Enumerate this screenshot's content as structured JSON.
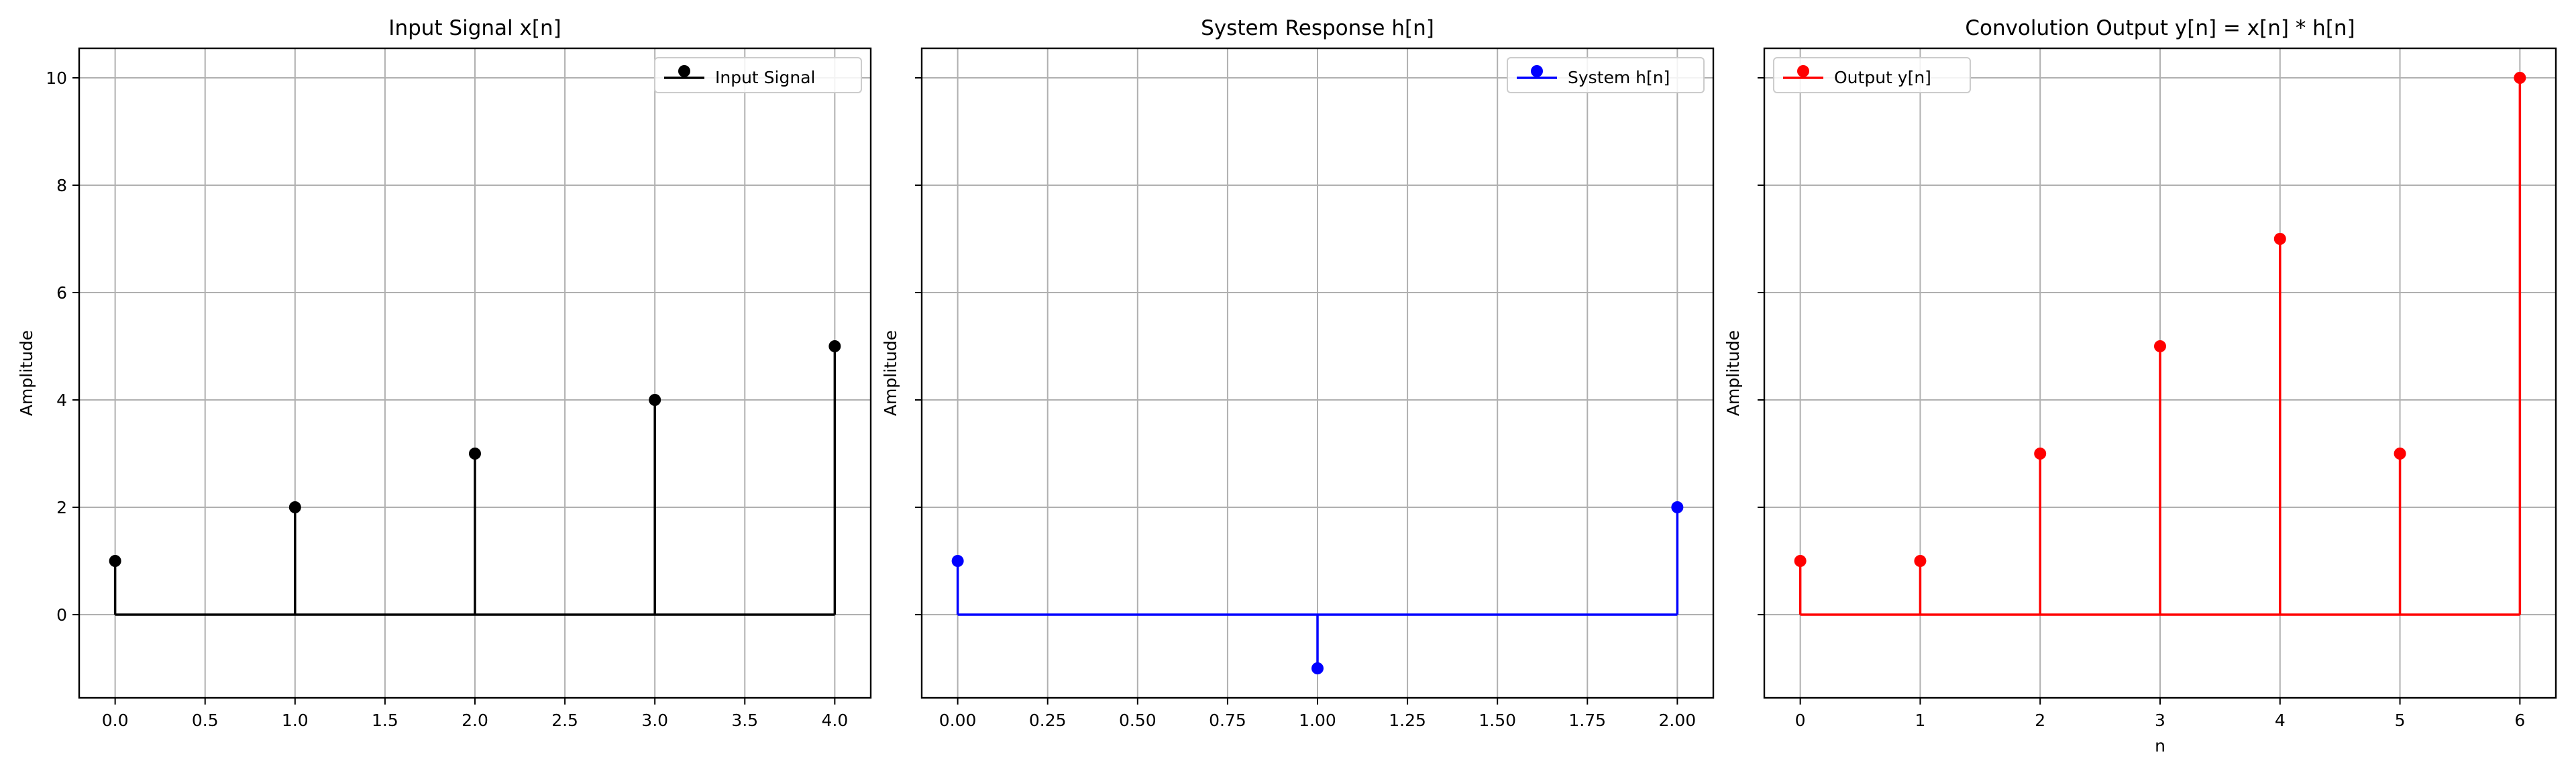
{
  "chart_data": [
    {
      "type": "stem",
      "title": "Input Signal x[n]",
      "xlabel": "",
      "ylabel": "Amplitude",
      "xlim": [
        -0.2,
        4.2
      ],
      "ylim": [
        -1.55,
        10.55
      ],
      "xticks": [
        0.0,
        0.5,
        1.0,
        1.5,
        2.0,
        2.5,
        3.0,
        3.5,
        4.0
      ],
      "xtick_labels": [
        "0.0",
        "0.5",
        "1.0",
        "1.5",
        "2.0",
        "2.5",
        "3.0",
        "3.5",
        "4.0"
      ],
      "yticks": [
        0,
        2,
        4,
        6,
        8,
        10
      ],
      "ytick_labels": [
        "0",
        "2",
        "4",
        "6",
        "8",
        "10"
      ],
      "show_ytick_labels": true,
      "grid": true,
      "legend_position": "upper right",
      "series": [
        {
          "name": "Input Signal",
          "color": "#000000",
          "x": [
            0,
            1,
            2,
            3,
            4
          ],
          "y": [
            1,
            2,
            3,
            4,
            5
          ]
        }
      ]
    },
    {
      "type": "stem",
      "title": "System Response h[n]",
      "xlabel": "",
      "ylabel": "Amplitude",
      "xlim": [
        -0.1,
        2.1
      ],
      "ylim": [
        -1.55,
        10.55
      ],
      "xticks": [
        0.0,
        0.25,
        0.5,
        0.75,
        1.0,
        1.25,
        1.5,
        1.75,
        2.0
      ],
      "xtick_labels": [
        "0.00",
        "0.25",
        "0.50",
        "0.75",
        "1.00",
        "1.25",
        "1.50",
        "1.75",
        "2.00"
      ],
      "yticks": [
        0,
        2,
        4,
        6,
        8,
        10
      ],
      "ytick_labels": [
        "0",
        "2",
        "4",
        "6",
        "8",
        "10"
      ],
      "show_ytick_labels": false,
      "grid": true,
      "legend_position": "upper right",
      "series": [
        {
          "name": "System h[n]",
          "color": "#0000ff",
          "x": [
            0,
            1,
            2
          ],
          "y": [
            1,
            -1,
            2
          ]
        }
      ]
    },
    {
      "type": "stem",
      "title": "Convolution Output y[n] = x[n] * h[n]",
      "xlabel": "n",
      "ylabel": "Amplitude",
      "xlim": [
        -0.3,
        6.3
      ],
      "ylim": [
        -1.55,
        10.55
      ],
      "xticks": [
        0,
        1,
        2,
        3,
        4,
        5,
        6
      ],
      "xtick_labels": [
        "0",
        "1",
        "2",
        "3",
        "4",
        "5",
        "6"
      ],
      "yticks": [
        0,
        2,
        4,
        6,
        8,
        10
      ],
      "ytick_labels": [
        "0",
        "2",
        "4",
        "6",
        "8",
        "10"
      ],
      "show_ytick_labels": false,
      "grid": true,
      "legend_position": "upper left",
      "series": [
        {
          "name": "Output y[n]",
          "color": "#ff0000",
          "x": [
            0,
            1,
            2,
            3,
            4,
            5,
            6
          ],
          "y": [
            1,
            1,
            3,
            5,
            7,
            3,
            10
          ]
        }
      ]
    }
  ]
}
